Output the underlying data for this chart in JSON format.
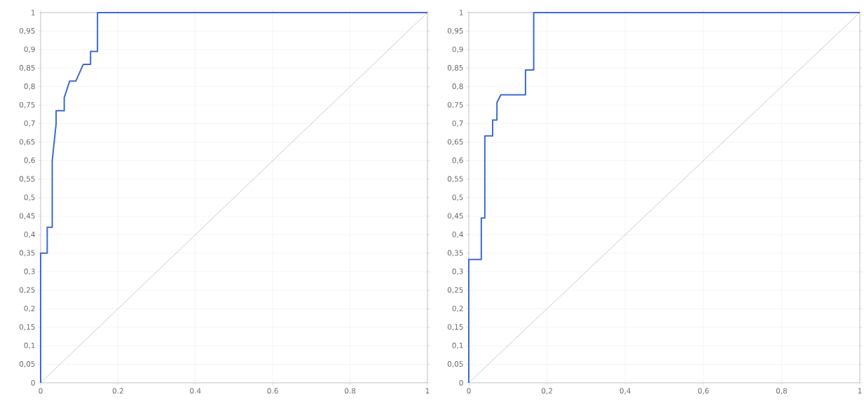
{
  "chart_data": [
    {
      "type": "line",
      "grid": true,
      "xlim": [
        0,
        1
      ],
      "ylim": [
        0,
        1
      ],
      "xticks": [
        0,
        0.2,
        0.4,
        0.6,
        0.8,
        1
      ],
      "yticks": [
        0,
        {
          "value": 0.05,
          "label": "0,05"
        },
        {
          "value": 0.1,
          "label": "0,1"
        },
        {
          "value": 0.15,
          "label": "0,15"
        },
        {
          "value": 0.2,
          "label": "0,2"
        },
        {
          "value": 0.25,
          "label": "0,25"
        },
        {
          "value": 0.3,
          "label": "0,3"
        },
        {
          "value": 0.35,
          "label": "0,35"
        },
        {
          "value": 0.4,
          "label": "0,4"
        },
        {
          "value": 0.45,
          "label": "0,45"
        },
        {
          "value": 0.5,
          "label": "0,5"
        },
        {
          "value": 0.55,
          "label": "0,55"
        },
        {
          "value": 0.6,
          "label": "0,6"
        },
        {
          "value": 0.65,
          "label": "0,65"
        },
        {
          "value": 0.7,
          "label": "0,7"
        },
        {
          "value": 0.75,
          "label": "0,75"
        },
        {
          "value": 0.8,
          "label": "0,8"
        },
        {
          "value": 0.85,
          "label": "0,85"
        },
        {
          "value": 0.9,
          "label": "0,9"
        },
        {
          "value": 0.95,
          "label": "0,95"
        },
        1
      ],
      "series": [
        {
          "color": "#aaaaaa",
          "x": [
            0,
            1
          ],
          "values": [
            0,
            1
          ]
        },
        {
          "color": "#3d6bd0",
          "x": [
            0,
            0,
            0.017,
            0.017,
            0.03,
            0.03,
            0.04,
            0.04,
            0.061,
            0.061,
            0.075,
            0.091,
            0.11,
            0.129,
            0.129,
            0.147,
            0.147,
            1
          ],
          "values": [
            0,
            0.35,
            0.35,
            0.42,
            0.42,
            0.6,
            0.7,
            0.735,
            0.735,
            0.77,
            0.815,
            0.815,
            0.86,
            0.86,
            0.895,
            0.895,
            1,
            1
          ]
        }
      ]
    },
    {
      "type": "line",
      "grid": true,
      "xlim": [
        0,
        1
      ],
      "ylim": [
        0,
        1
      ],
      "xticks": [
        0,
        {
          "value": 0.2,
          "label": "0,2"
        },
        {
          "value": 0.4,
          "label": "0,4"
        },
        {
          "value": 0.6,
          "label": "0,6"
        },
        {
          "value": 0.8,
          "label": "0,8"
        },
        1
      ],
      "yticks": [
        0,
        {
          "value": 0.05,
          "label": "0,05"
        },
        {
          "value": 0.1,
          "label": "0,1"
        },
        {
          "value": 0.15,
          "label": "0,15"
        },
        {
          "value": 0.2,
          "label": "0,2"
        },
        {
          "value": 0.25,
          "label": "0,25"
        },
        {
          "value": 0.3,
          "label": "0,3"
        },
        {
          "value": 0.35,
          "label": "0,35"
        },
        {
          "value": 0.4,
          "label": "0,4"
        },
        {
          "value": 0.45,
          "label": "0,45"
        },
        {
          "value": 0.5,
          "label": "0,5"
        },
        {
          "value": 0.55,
          "label": "0,55"
        },
        {
          "value": 0.6,
          "label": "0,6"
        },
        {
          "value": 0.65,
          "label": "0,65"
        },
        {
          "value": 0.7,
          "label": "0,7"
        },
        {
          "value": 0.75,
          "label": "0,75"
        },
        {
          "value": 0.8,
          "label": "0,8"
        },
        {
          "value": 0.85,
          "label": "0,85"
        },
        {
          "value": 0.9,
          "label": "0,9"
        },
        {
          "value": 0.95,
          "label": "0,95"
        },
        1
      ],
      "series": [
        {
          "color": "#aaaaaa",
          "x": [
            0,
            1
          ],
          "values": [
            0,
            1
          ]
        },
        {
          "color": "#3d6bd0",
          "x": [
            0,
            0,
            0.032,
            0.032,
            0.041,
            0.041,
            0.061,
            0.061,
            0.072,
            0.072,
            0.082,
            0.145,
            0.145,
            0.166,
            0.166,
            1
          ],
          "values": [
            0,
            0.333,
            0.333,
            0.445,
            0.445,
            0.667,
            0.667,
            0.71,
            0.71,
            0.757,
            0.778,
            0.778,
            0.845,
            0.845,
            1,
            1
          ]
        }
      ]
    }
  ]
}
